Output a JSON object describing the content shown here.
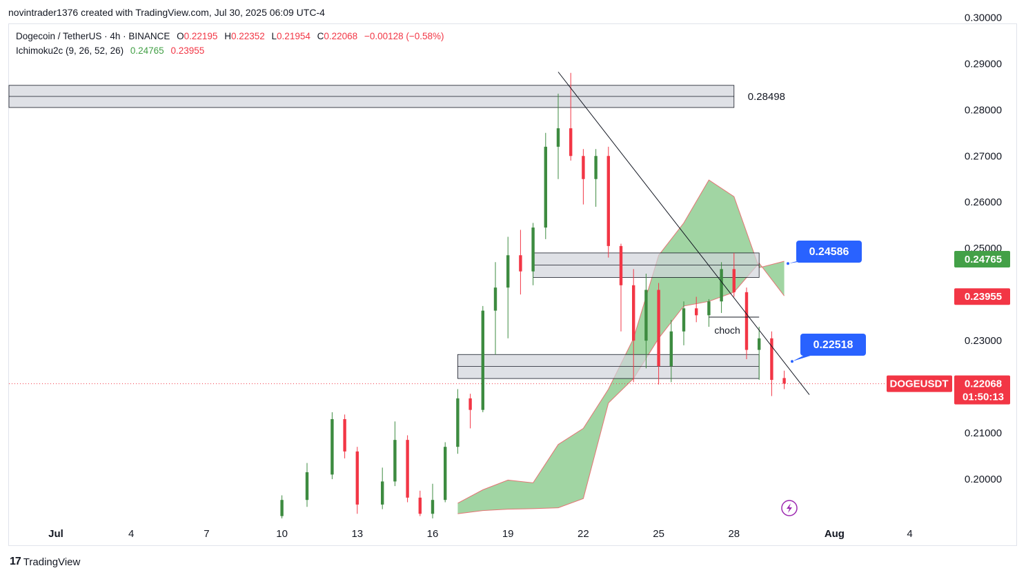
{
  "header": {
    "author_line": "novintrader1376 created with TradingView.com, Jul 30, 2025 06:09 UTC-4"
  },
  "legend": {
    "symbol": "Dogecoin / TetherUS · 4h · BINANCE",
    "o_key": "O",
    "o_val": "0.22195",
    "h_key": "H",
    "h_val": "0.22352",
    "l_key": "L",
    "l_val": "0.21954",
    "c_key": "C",
    "c_val": "0.22068",
    "change": "−0.00128 (−0.58%)",
    "indicator": "Ichimoku2c (9, 26, 52, 26)",
    "ind_val1": "0.24765",
    "ind_val2": "0.23955"
  },
  "footer": {
    "logo": "17",
    "brand": "TradingView"
  },
  "colors": {
    "up": "#3d8b40",
    "down": "#f23645",
    "cloud": "#81c784",
    "cloud_edge": "#e57373",
    "zone_fill": "#d1d4dc",
    "zone_edge": "#131722",
    "callout": "#2962ff",
    "price_tag": "#f23645",
    "ichi_green": "#43a047",
    "ichi_red": "#f23645"
  },
  "chart_data": {
    "type": "candlestick",
    "symbol": "DOGEUSDT",
    "interval": "4h",
    "y_axis": {
      "ylim": [
        0.1915,
        0.3005
      ],
      "ticks": [
        "0.30000",
        "0.29000",
        "0.28000",
        "0.27000",
        "0.26000",
        "0.25000",
        "0.23000",
        "0.21000",
        "0.20000"
      ]
    },
    "x_axis": {
      "labels": [
        "Jul",
        "4",
        "7",
        "10",
        "13",
        "16",
        "19",
        "22",
        "25",
        "28",
        "Aug",
        "4"
      ],
      "start": "2025-07-01",
      "end": "2025-08-04"
    },
    "annotations": {
      "resistance_label": "0.28498",
      "callout_upper": "0.24586",
      "callout_lower": "0.22518",
      "choch_label": "choch",
      "symbol_tag": "DOGEUSDT",
      "last_price": "0.22068",
      "countdown": "01:50:13",
      "ichimoku_upper": "0.24765",
      "ichimoku_lower": "0.23955"
    },
    "zones": [
      {
        "name": "resistance",
        "from": "2025-06-28",
        "to": "2025-07-28",
        "low": 0.2805,
        "high": 0.2853
      },
      {
        "name": "mid",
        "from": "2025-07-20",
        "to": "2025-07-29",
        "low": 0.2437,
        "high": 0.249
      },
      {
        "name": "support",
        "from": "2025-07-17",
        "to": "2025-07-29",
        "low": 0.2218,
        "high": 0.227
      }
    ],
    "trendline": {
      "from_date": "2025-07-21",
      "from_price": 0.2882,
      "to_date": "2025-07-31",
      "to_price": 0.2183
    },
    "choch_line": {
      "from_date": "2025-07-27",
      "to_date": "2025-07-29",
      "price": 0.2351
    },
    "cloud_upper": [
      [
        "2025-07-17",
        0.1948
      ],
      [
        "2025-07-18",
        0.1977
      ],
      [
        "2025-07-19",
        0.1998
      ],
      [
        "2025-07-20",
        0.1992
      ],
      [
        "2025-07-21",
        0.2075
      ],
      [
        "2025-07-22",
        0.211
      ],
      [
        "2025-07-23",
        0.2195
      ],
      [
        "2025-07-24",
        0.2305
      ],
      [
        "2025-07-25",
        0.2485
      ],
      [
        "2025-07-26",
        0.2555
      ],
      [
        "2025-07-27",
        0.2648
      ],
      [
        "2025-07-28",
        0.2612
      ],
      [
        "2025-07-29",
        0.2458
      ],
      [
        "2025-07-30",
        0.2472
      ]
    ],
    "cloud_lower": [
      [
        "2025-07-17",
        0.1925
      ],
      [
        "2025-07-18",
        0.1932
      ],
      [
        "2025-07-19",
        0.1935
      ],
      [
        "2025-07-20",
        0.1936
      ],
      [
        "2025-07-21",
        0.1938
      ],
      [
        "2025-07-22",
        0.1958
      ],
      [
        "2025-07-23",
        0.2165
      ],
      [
        "2025-07-24",
        0.2218
      ],
      [
        "2025-07-25",
        0.2305
      ],
      [
        "2025-07-26",
        0.2375
      ],
      [
        "2025-07-27",
        0.2385
      ],
      [
        "2025-07-28",
        0.2405
      ],
      [
        "2025-07-29",
        0.2468
      ],
      [
        "2025-07-30",
        0.2397
      ]
    ],
    "candles": [
      [
        "2025-07-10",
        0.192,
        0.1965,
        0.1915,
        0.1955
      ],
      [
        "2025-07-11",
        0.1955,
        0.2035,
        0.194,
        0.2015
      ],
      [
        "2025-07-12",
        0.201,
        0.2145,
        0.2,
        0.213
      ],
      [
        "2025-07-12T12",
        0.213,
        0.214,
        0.2045,
        0.206
      ],
      [
        "2025-07-13",
        0.206,
        0.207,
        0.1925,
        0.1945
      ],
      [
        "2025-07-14",
        0.1945,
        0.2025,
        0.1935,
        0.1995
      ],
      [
        "2025-07-14T12",
        0.1995,
        0.2125,
        0.1985,
        0.2085
      ],
      [
        "2025-07-15",
        0.2085,
        0.2095,
        0.195,
        0.196
      ],
      [
        "2025-07-15T12",
        0.196,
        0.1975,
        0.192,
        0.1925
      ],
      [
        "2025-07-16",
        0.1925,
        0.199,
        0.1915,
        0.1955
      ],
      [
        "2025-07-16T12",
        0.1955,
        0.208,
        0.195,
        0.207
      ],
      [
        "2025-07-17",
        0.207,
        0.2195,
        0.2055,
        0.2175
      ],
      [
        "2025-07-17T12",
        0.2175,
        0.2185,
        0.211,
        0.215
      ],
      [
        "2025-07-18",
        0.215,
        0.2375,
        0.2145,
        0.2365
      ],
      [
        "2025-07-18T12",
        0.2365,
        0.247,
        0.227,
        0.2415
      ],
      [
        "2025-07-19",
        0.2415,
        0.2525,
        0.2305,
        0.2485
      ],
      [
        "2025-07-19T12",
        0.2485,
        0.254,
        0.24,
        0.245
      ],
      [
        "2025-07-20",
        0.245,
        0.2555,
        0.242,
        0.2545
      ],
      [
        "2025-07-20T12",
        0.2545,
        0.275,
        0.252,
        0.272
      ],
      [
        "2025-07-21",
        0.272,
        0.2835,
        0.265,
        0.276
      ],
      [
        "2025-07-21T12",
        0.276,
        0.288,
        0.269,
        0.27
      ],
      [
        "2025-07-22",
        0.27,
        0.2715,
        0.2595,
        0.265
      ],
      [
        "2025-07-22T12",
        0.265,
        0.2715,
        0.259,
        0.27
      ],
      [
        "2025-07-23",
        0.27,
        0.272,
        0.248,
        0.2505
      ],
      [
        "2025-07-23T12",
        0.2505,
        0.251,
        0.232,
        0.242
      ],
      [
        "2025-07-24",
        0.242,
        0.2455,
        0.221,
        0.23
      ],
      [
        "2025-07-24T12",
        0.23,
        0.2445,
        0.224,
        0.241
      ],
      [
        "2025-07-25",
        0.241,
        0.2425,
        0.2205,
        0.2245
      ],
      [
        "2025-07-25T12",
        0.2245,
        0.2345,
        0.221,
        0.232
      ],
      [
        "2025-07-26",
        0.232,
        0.2385,
        0.229,
        0.237
      ],
      [
        "2025-07-26T12",
        0.237,
        0.2395,
        0.234,
        0.2355
      ],
      [
        "2025-07-27",
        0.2355,
        0.239,
        0.233,
        0.2385
      ],
      [
        "2025-07-27T12",
        0.2385,
        0.247,
        0.236,
        0.2455
      ],
      [
        "2025-07-28",
        0.2455,
        0.249,
        0.2395,
        0.2405
      ],
      [
        "2025-07-28T12",
        0.2405,
        0.2415,
        0.226,
        0.228
      ],
      [
        "2025-07-29",
        0.228,
        0.233,
        0.2215,
        0.2305
      ],
      [
        "2025-07-29T12",
        0.2305,
        0.232,
        0.218,
        0.2215
      ],
      [
        "2025-07-30",
        0.2219,
        0.2235,
        0.2195,
        0.2207
      ]
    ]
  }
}
